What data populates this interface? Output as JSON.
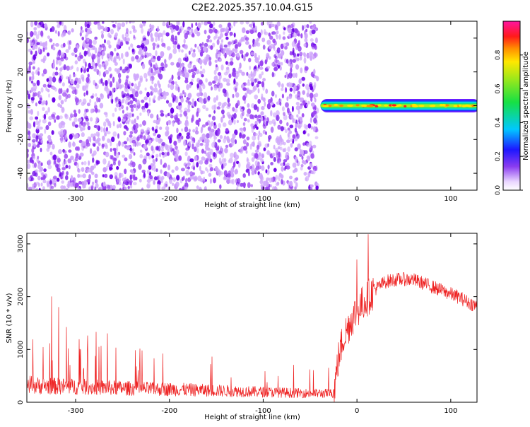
{
  "title": "C2E2.2025.357.10.04.G15",
  "colors": {
    "snr_line": "#ee2222",
    "speckle_dark": "#6a00e8",
    "speckle_mid": "#9b45f2",
    "speckle_light": "#cfa6fb"
  },
  "chart_data": [
    {
      "type": "heatmap",
      "xlabel": "Height of straight line (km)",
      "ylabel": "Frequency (Hz)",
      "xlim": [
        -352,
        128
      ],
      "ylim": [
        -50,
        50
      ],
      "xticks": [
        -300,
        -200,
        -100,
        0,
        100
      ],
      "yticks": [
        -40,
        -20,
        0,
        20,
        40
      ],
      "grid": false,
      "colorbar": {
        "label": "Normalized spectral amplitude",
        "range": [
          0,
          1
        ],
        "ticks": [
          0.0,
          0.2,
          0.4,
          0.6,
          0.8
        ],
        "colormap": "rainbow (white-violet-blue-cyan-green-yellow-red-magenta)"
      },
      "regions": [
        {
          "x_range": [
            -352,
            -42
          ],
          "description": "broadband low-amplitude noise across full frequency range"
        },
        {
          "x_range": [
            -42,
            128
          ],
          "frequency_center": 0,
          "frequency_halfwidth": 4,
          "description": "narrow high-amplitude signal band near 0 Hz"
        }
      ]
    },
    {
      "type": "line",
      "xlabel": "Height of straight line (km)",
      "ylabel": "SNR (10 * v/v)",
      "xlim": [
        -352,
        128
      ],
      "ylim": [
        0,
        3200
      ],
      "xticks": [
        -300,
        -200,
        -100,
        0,
        100
      ],
      "yticks": [
        0,
        1000,
        2000,
        3000
      ],
      "grid": false,
      "series": [
        {
          "x": [
            -350,
            -340,
            -320,
            -300,
            -280,
            -260,
            -240,
            -220,
            -200,
            -180,
            -160,
            -140,
            -120,
            -100,
            -80,
            -60,
            -40,
            -25,
            -20,
            -15,
            -10,
            -5,
            0,
            5,
            10,
            20,
            30,
            40,
            50,
            60,
            70,
            80,
            90,
            100,
            110,
            120,
            128
          ],
          "values": [
            320,
            300,
            290,
            280,
            270,
            260,
            250,
            240,
            235,
            225,
            215,
            205,
            195,
            185,
            175,
            165,
            160,
            160,
            800,
            1200,
            1400,
            1600,
            1750,
            1850,
            1950,
            2150,
            2280,
            2320,
            2330,
            2320,
            2260,
            2190,
            2120,
            2050,
            1980,
            1880,
            1820
          ],
          "spikes": [
            {
              "x": -326,
              "value": 2000
            },
            {
              "x": -318,
              "value": 1800
            },
            {
              "x": -310,
              "value": 1420
            },
            {
              "x": -296,
              "value": 1190
            },
            {
              "x": -287,
              "value": 1260
            },
            {
              "x": -278,
              "value": 1330
            },
            {
              "x": -266,
              "value": 1300
            },
            {
              "x": 12,
              "value": 3180
            },
            {
              "x": 0,
              "value": 2700
            }
          ]
        }
      ]
    }
  ]
}
